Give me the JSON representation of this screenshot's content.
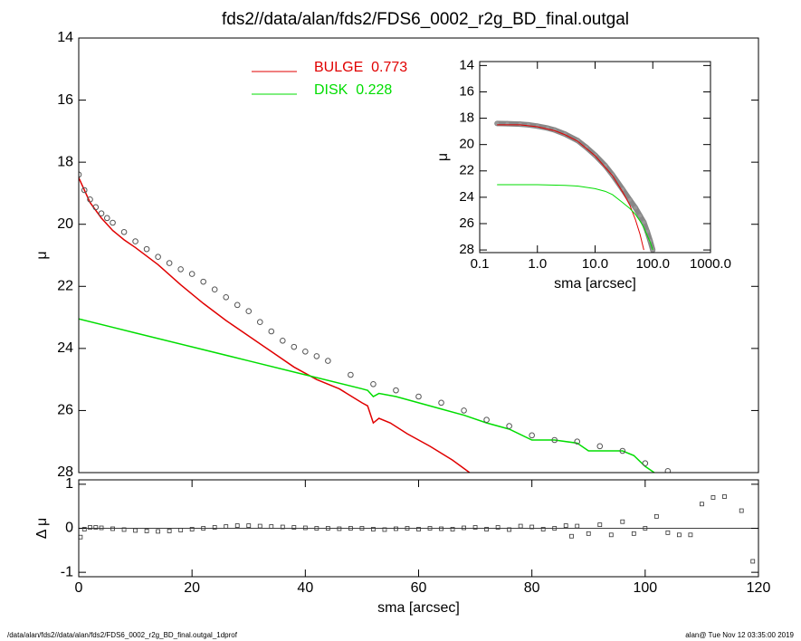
{
  "title": "fds2//data/alan/fds2/FDS6_0002_r2g_BD_final.outgal",
  "footer": {
    "left": "/data/alan/fds2//data/alan/fds2/FDS6_0002_r2g_BD_final.outgal_1dprof",
    "right": "alan@  Tue Nov 12 03:35:00 2019"
  },
  "chart_data": [
    {
      "type": "line",
      "ylabel": "μ",
      "xlim": [
        0,
        120
      ],
      "ylim": [
        28,
        14
      ],
      "yticks": [
        14,
        16,
        18,
        20,
        22,
        24,
        26,
        28
      ],
      "legend": "top-center",
      "series": [
        {
          "name": "BULGE  0.773",
          "color": "#e00000",
          "mode": "lines",
          "x": [
            0,
            2,
            4,
            6,
            8,
            10,
            14,
            18,
            22,
            26,
            30,
            34,
            38,
            42,
            46,
            50,
            51,
            52,
            53,
            55,
            58,
            62,
            66,
            69
          ],
          "values": [
            18.5,
            19.3,
            19.8,
            20.2,
            20.5,
            20.75,
            21.3,
            21.95,
            22.55,
            23.1,
            23.6,
            24.1,
            24.6,
            25.0,
            25.3,
            25.75,
            25.85,
            26.4,
            26.25,
            26.4,
            26.75,
            27.15,
            27.6,
            28.0
          ]
        },
        {
          "name": "DISK  0.228",
          "color": "#00dd00",
          "mode": "lines",
          "x": [
            0,
            10,
            20,
            30,
            40,
            50,
            51,
            52,
            53,
            56,
            60,
            64,
            68,
            72,
            76,
            80,
            84,
            88,
            90,
            96,
            98,
            100,
            102
          ],
          "values": [
            23.05,
            23.5,
            23.95,
            24.4,
            24.85,
            25.3,
            25.35,
            25.55,
            25.45,
            25.55,
            25.75,
            25.95,
            26.15,
            26.4,
            26.6,
            26.95,
            26.95,
            27.05,
            27.3,
            27.3,
            27.45,
            27.8,
            28.05
          ]
        },
        {
          "color": "#555555",
          "mode": "markers",
          "x": [
            0,
            1,
            2,
            3,
            4,
            5,
            6,
            8,
            10,
            12,
            14,
            16,
            18,
            20,
            22,
            24,
            26,
            28,
            30,
            32,
            34,
            36,
            38,
            40,
            42,
            44,
            48,
            52,
            56,
            60,
            64,
            68,
            72,
            76,
            80,
            84,
            88,
            92,
            96,
            100,
            104
          ],
          "values": [
            18.4,
            18.9,
            19.2,
            19.45,
            19.65,
            19.8,
            19.95,
            20.25,
            20.55,
            20.8,
            21.05,
            21.25,
            21.45,
            21.6,
            21.85,
            22.1,
            22.35,
            22.6,
            22.8,
            23.15,
            23.45,
            23.75,
            23.95,
            24.1,
            24.25,
            24.4,
            24.85,
            25.15,
            25.35,
            25.55,
            25.75,
            26.0,
            26.3,
            26.5,
            26.8,
            26.95,
            27.0,
            27.15,
            27.3,
            27.7,
            27.95
          ]
        }
      ]
    },
    {
      "type": "scatter",
      "ylabel": "Δ μ",
      "xlabel": "sma [arcsec]",
      "xlim": [
        0,
        120
      ],
      "ylim": [
        -1.1,
        1.1
      ],
      "xticks": [
        0,
        20,
        40,
        60,
        80,
        100,
        120
      ],
      "yticks": [
        -1,
        0,
        1
      ],
      "zero_line": true,
      "series": [
        {
          "color": "#333333",
          "mode": "markers",
          "x": [
            0.3,
            1,
            2,
            3,
            4,
            6,
            8,
            10,
            12,
            14,
            16,
            18,
            20,
            22,
            24,
            26,
            28,
            30,
            32,
            34,
            36,
            38,
            40,
            42,
            44,
            46,
            48,
            50,
            52,
            54,
            56,
            58,
            60,
            62,
            64,
            66,
            68,
            70,
            72,
            74,
            76,
            78,
            80,
            82,
            84,
            86,
            87,
            88,
            90,
            92,
            94,
            96,
            98,
            100,
            102,
            104,
            106,
            108,
            110,
            112,
            114,
            117,
            119
          ],
          "values": [
            -0.2,
            -0.02,
            0.02,
            0.02,
            0.01,
            -0.01,
            -0.03,
            -0.05,
            -0.06,
            -0.07,
            -0.06,
            -0.04,
            -0.02,
            0.0,
            0.02,
            0.04,
            0.06,
            0.06,
            0.05,
            0.04,
            0.03,
            0.02,
            0.01,
            0.0,
            0.0,
            -0.01,
            0.0,
            0.0,
            -0.02,
            -0.03,
            -0.01,
            0.0,
            -0.02,
            0.0,
            -0.01,
            -0.02,
            0.01,
            0.02,
            -0.02,
            0.02,
            -0.03,
            0.05,
            0.03,
            -0.02,
            0.0,
            0.06,
            -0.18,
            0.05,
            -0.12,
            0.08,
            -0.15,
            0.15,
            -0.12,
            0.0,
            0.27,
            -0.1,
            -0.15,
            -0.15,
            0.55,
            0.7,
            0.72,
            0.4,
            -0.75
          ]
        }
      ]
    },
    {
      "type": "line",
      "ylabel": "μ",
      "xlabel": "sma [arcsec]",
      "xlog": true,
      "xlim": [
        0.1,
        1000
      ],
      "ylim": [
        28.2,
        13.7
      ],
      "xticks": [
        {
          "value": 0.1,
          "label": "0.1"
        },
        {
          "value": 1,
          "label": "1.0"
        },
        {
          "value": 10,
          "label": "10.0"
        },
        {
          "value": 100,
          "label": "100.0"
        },
        {
          "value": 1000,
          "label": "1000.0"
        }
      ],
      "yticks": [
        14,
        16,
        18,
        20,
        22,
        24,
        26,
        28
      ],
      "series": [
        {
          "color": "#888888",
          "mode": "markers",
          "x": [
            0.2,
            0.3,
            0.5,
            0.7,
            1,
            1.5,
            2,
            3,
            5,
            7,
            10,
            15,
            20,
            30,
            40,
            50,
            60,
            70,
            80,
            90,
            100
          ],
          "values": [
            18.4,
            18.42,
            18.45,
            18.5,
            18.6,
            18.75,
            18.9,
            19.2,
            19.7,
            20.2,
            20.8,
            21.6,
            22.3,
            23.4,
            24.2,
            24.8,
            25.4,
            25.9,
            26.6,
            27.3,
            28.0
          ]
        },
        {
          "color": "#e00000",
          "mode": "lines",
          "x": [
            0.2,
            0.5,
            1,
            2,
            3,
            5,
            10,
            20,
            30,
            40,
            50,
            60,
            70
          ],
          "values": [
            18.5,
            18.5,
            18.65,
            18.95,
            19.25,
            19.75,
            20.85,
            22.35,
            23.6,
            24.6,
            25.7,
            26.8,
            28.0
          ]
        },
        {
          "color": "#00dd00",
          "mode": "lines",
          "x": [
            0.2,
            1,
            3,
            5,
            10,
            15,
            20,
            30,
            40,
            50,
            60,
            70,
            80,
            90,
            100
          ],
          "values": [
            23.05,
            23.05,
            23.1,
            23.15,
            23.35,
            23.55,
            23.8,
            24.4,
            24.85,
            25.3,
            25.8,
            26.3,
            26.9,
            27.4,
            28.0
          ]
        }
      ]
    }
  ]
}
